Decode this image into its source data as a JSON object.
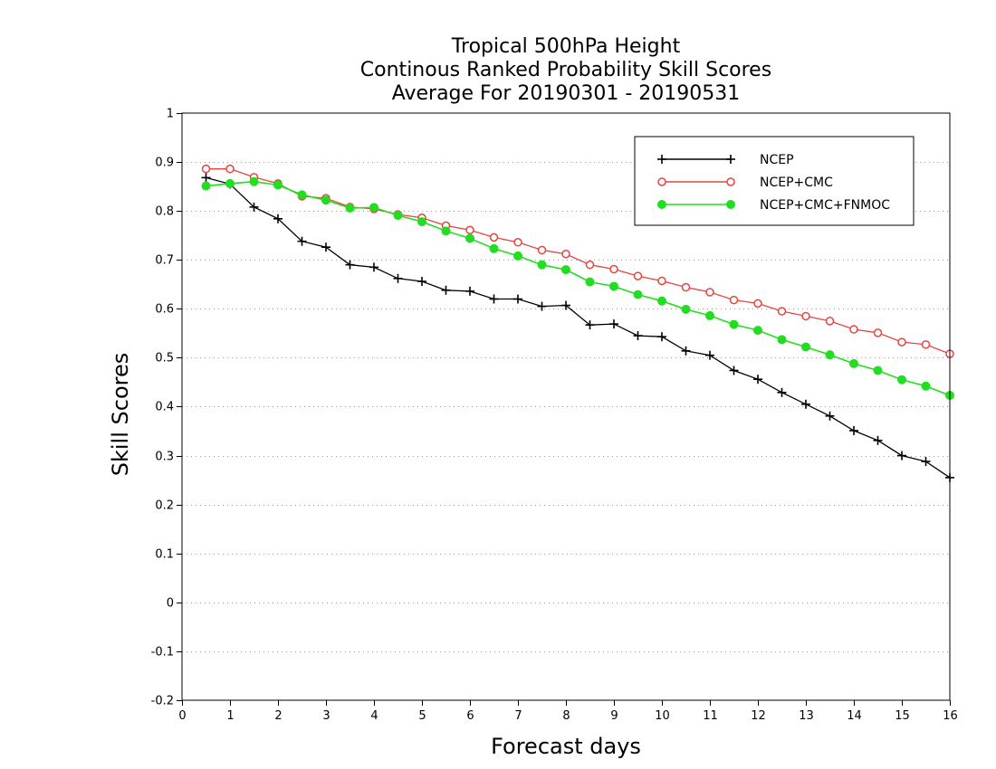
{
  "chart_data": {
    "type": "line",
    "title_lines": [
      "Tropical 500hPa Height",
      "Continous Ranked Probability Skill Scores",
      "Average For 20190301 - 20190531"
    ],
    "xlabel": "Forecast days",
    "ylabel": "Skill Scores",
    "xlim": [
      0,
      16
    ],
    "ylim": [
      -0.2,
      1
    ],
    "x_ticks": [
      0,
      1,
      2,
      3,
      4,
      5,
      6,
      7,
      8,
      9,
      10,
      11,
      12,
      13,
      14,
      15,
      16
    ],
    "y_ticks": [
      -0.2,
      -0.1,
      0,
      0.1,
      0.2,
      0.3,
      0.4,
      0.5,
      0.6,
      0.7,
      0.8,
      0.9,
      1
    ],
    "y_tick_labels": [
      "-0.2",
      "-0.1",
      "0",
      "0.1",
      "0.2",
      "0.3",
      "0.4",
      "0.5",
      "0.6",
      "0.7",
      "0.8",
      "0.9",
      "1"
    ],
    "grid": "horizontal dotted",
    "legend_position": "top-right",
    "x": [
      0.5,
      1,
      1.5,
      2,
      2.5,
      3,
      3.5,
      4,
      4.5,
      5,
      5.5,
      6,
      6.5,
      7,
      7.5,
      8,
      8.5,
      9,
      9.5,
      10,
      10.5,
      11,
      11.5,
      12,
      12.5,
      13,
      13.5,
      14,
      14.5,
      15,
      15.5,
      16
    ],
    "series": [
      {
        "name": "NCEP",
        "color": "#000000",
        "marker": "plus",
        "values": [
          0.868,
          0.855,
          0.808,
          0.784,
          0.738,
          0.726,
          0.69,
          0.685,
          0.662,
          0.656,
          0.638,
          0.636,
          0.62,
          0.62,
          0.605,
          0.607,
          0.567,
          0.569,
          0.545,
          0.543,
          0.514,
          0.505,
          0.474,
          0.456,
          0.429,
          0.405,
          0.381,
          0.351,
          0.331,
          0.3,
          0.288,
          0.255
        ]
      },
      {
        "name": "NCEP+CMC",
        "color": "#e8433f",
        "marker": "open-circle",
        "values": [
          0.886,
          0.886,
          0.869,
          0.856,
          0.83,
          0.826,
          0.808,
          0.804,
          0.793,
          0.786,
          0.77,
          0.761,
          0.746,
          0.736,
          0.72,
          0.712,
          0.69,
          0.681,
          0.667,
          0.657,
          0.644,
          0.634,
          0.618,
          0.611,
          0.595,
          0.585,
          0.575,
          0.558,
          0.551,
          0.532,
          0.527,
          0.508
        ]
      },
      {
        "name": "NCEP+CMC+FNMOC",
        "color": "#22dd22",
        "marker": "filled-circle",
        "values": [
          0.851,
          0.856,
          0.86,
          0.853,
          0.833,
          0.822,
          0.806,
          0.807,
          0.791,
          0.778,
          0.759,
          0.744,
          0.723,
          0.708,
          0.69,
          0.68,
          0.655,
          0.646,
          0.629,
          0.616,
          0.599,
          0.586,
          0.568,
          0.556,
          0.537,
          0.522,
          0.506,
          0.488,
          0.474,
          0.455,
          0.442,
          0.423
        ]
      }
    ]
  }
}
